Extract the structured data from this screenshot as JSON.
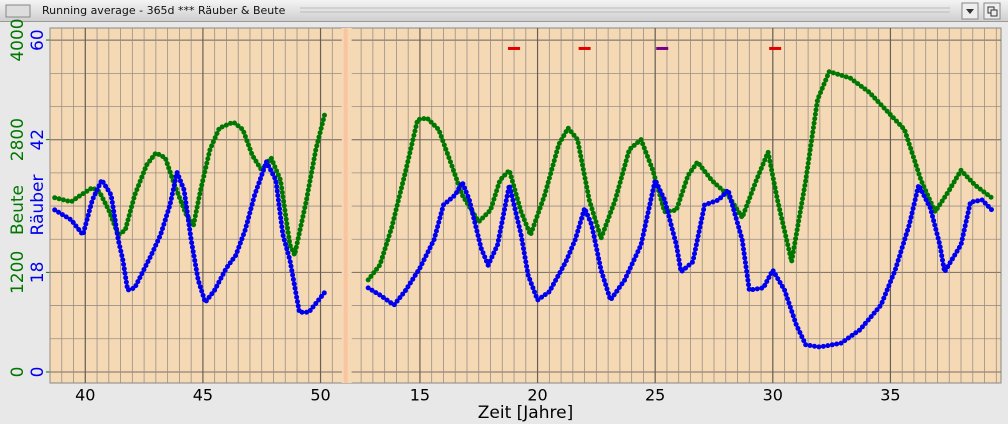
{
  "chart_data": {
    "type": "scatter",
    "title": "Running average - 365d *** Räuber & Beute",
    "xlabel": "Zeit [Jahre]",
    "ylabel": "Beute",
    "y2label": "Räuber",
    "ylim": [
      -133,
      4145
    ],
    "yticks": [
      0,
      1200,
      2800,
      4000
    ],
    "y2lim": [
      -2,
      62.2
    ],
    "y2ticks": [
      0,
      18,
      42,
      60
    ],
    "grid": true,
    "background": "#f5d9b5",
    "gap_color": "#f9c4a0",
    "panels": [
      {
        "xlim": [
          38.5,
          50.9
        ],
        "xticks": [
          40,
          45,
          50
        ],
        "series": [
          {
            "name": "Beute",
            "color": "#007700",
            "axis": "y",
            "x": [
              38.7,
              39.4,
              39.8,
              40.3,
              40.6,
              41.0,
              41.4,
              41.7,
              42.1,
              42.6,
              43.0,
              43.4,
              43.8,
              44.3,
              44.6,
              44.9,
              45.3,
              45.7,
              46.3,
              46.7,
              47.1,
              47.5,
              47.9,
              48.3,
              48.7,
              48.9,
              49.4,
              49.8,
              50.2
            ],
            "values": [
              2100,
              2050,
              2130,
              2220,
              2170,
              1950,
              1650,
              1710,
              2130,
              2490,
              2640,
              2580,
              2250,
              1890,
              1770,
              2190,
              2680,
              2940,
              3010,
              2920,
              2610,
              2430,
              2580,
              2310,
              1530,
              1410,
              2070,
              2680,
              3130
            ]
          },
          {
            "name": "Räuber",
            "color": "#0000ee",
            "axis": "y2",
            "x": [
              38.7,
              39.4,
              39.9,
              40.3,
              40.7,
              41.1,
              41.4,
              41.6,
              41.8,
              42.1,
              42.8,
              43.2,
              43.6,
              43.9,
              44.2,
              44.5,
              44.8,
              45.1,
              45.5,
              46.0,
              46.4,
              46.8,
              47.2,
              47.7,
              48.1,
              48.4,
              48.7,
              49.1,
              49.5,
              50.2
            ],
            "values": [
              29.3,
              27.5,
              24.8,
              31.1,
              34.7,
              32.0,
              23.9,
              20.2,
              14.8,
              15.2,
              21.1,
              24.8,
              30.2,
              36.1,
              32.9,
              23.9,
              16.6,
              12.6,
              14.8,
              18.8,
              21.1,
              25.7,
              32.0,
              38.0,
              34.7,
              24.8,
              20.2,
              10.8,
              10.8,
              14.5
            ]
          }
        ]
      },
      {
        "xlim": [
          12.1,
          39.7
        ],
        "xticks": [
          15,
          20,
          25,
          30,
          35
        ],
        "series": [
          {
            "name": "Beute",
            "color": "#007700",
            "axis": "y",
            "x": [
              12.8,
              13.3,
              13.8,
              14.4,
              14.9,
              15.3,
              15.8,
              16.3,
              16.8,
              17.5,
              18.0,
              18.4,
              18.8,
              19.3,
              19.7,
              20.3,
              20.9,
              21.3,
              21.7,
              22.2,
              22.7,
              23.3,
              23.9,
              24.4,
              24.9,
              25.4,
              25.9,
              26.4,
              26.8,
              27.4,
              28.1,
              28.7,
              29.3,
              29.8,
              30.2,
              30.8,
              31.4,
              31.9,
              32.4,
              33.3,
              34.1,
              35.0,
              35.6,
              36.3,
              36.9,
              37.5,
              38.0,
              38.6,
              39.3
            ],
            "values": [
              1110,
              1290,
              1740,
              2430,
              3040,
              3060,
              2920,
              2530,
              2130,
              1810,
              1950,
              2310,
              2430,
              1930,
              1650,
              2130,
              2740,
              2940,
              2800,
              2070,
              1610,
              2070,
              2680,
              2800,
              2430,
              1930,
              1950,
              2370,
              2530,
              2310,
              2130,
              1860,
              2310,
              2650,
              2070,
              1330,
              2310,
              3280,
              3620,
              3540,
              3370,
              3100,
              2920,
              2310,
              1930,
              2190,
              2430,
              2250,
              2100
            ]
          },
          {
            "name": "Räuber",
            "color": "#0000ee",
            "axis": "y2",
            "x": [
              12.8,
              13.3,
              13.9,
              14.4,
              15.0,
              15.6,
              16.0,
              16.5,
              16.8,
              17.1,
              17.6,
              17.9,
              18.3,
              18.8,
              19.3,
              19.6,
              20.0,
              20.5,
              21.2,
              21.6,
              22.0,
              22.3,
              22.7,
              23.1,
              23.7,
              24.4,
              25.0,
              25.4,
              25.9,
              26.1,
              26.6,
              27.1,
              27.7,
              28.1,
              28.7,
              29.0,
              29.6,
              30.0,
              30.5,
              31.0,
              31.4,
              32.0,
              32.9,
              33.7,
              34.6,
              35.2,
              35.8,
              36.2,
              36.7,
              37.1,
              37.3,
              38.0,
              38.4,
              38.9,
              39.4
            ],
            "values": [
              15.2,
              13.9,
              12.1,
              14.8,
              18.8,
              23.9,
              30.2,
              32.0,
              34.3,
              31.1,
              22.4,
              19.3,
              23.0,
              33.8,
              24.8,
              17.5,
              13.0,
              14.5,
              19.9,
              23.9,
              29.6,
              26.6,
              18.4,
              13.0,
              16.6,
              23.0,
              34.7,
              31.1,
              23.0,
              18.1,
              19.9,
              30.2,
              31.1,
              32.9,
              23.9,
              14.8,
              15.2,
              18.4,
              14.8,
              8.5,
              4.9,
              4.5,
              5.2,
              7.6,
              12.1,
              18.4,
              26.6,
              33.8,
              29.6,
              23.0,
              18.1,
              23.0,
              30.7,
              31.1,
              28.9
            ]
          }
        ],
        "events": {
          "x": [
            19.0,
            22.0,
            25.3,
            30.1
          ],
          "y": [
            58.5,
            58.5,
            58.5,
            58.5
          ],
          "colors": [
            "#e00000",
            "#e00000",
            "#770088",
            "#e00000"
          ]
        }
      }
    ]
  }
}
